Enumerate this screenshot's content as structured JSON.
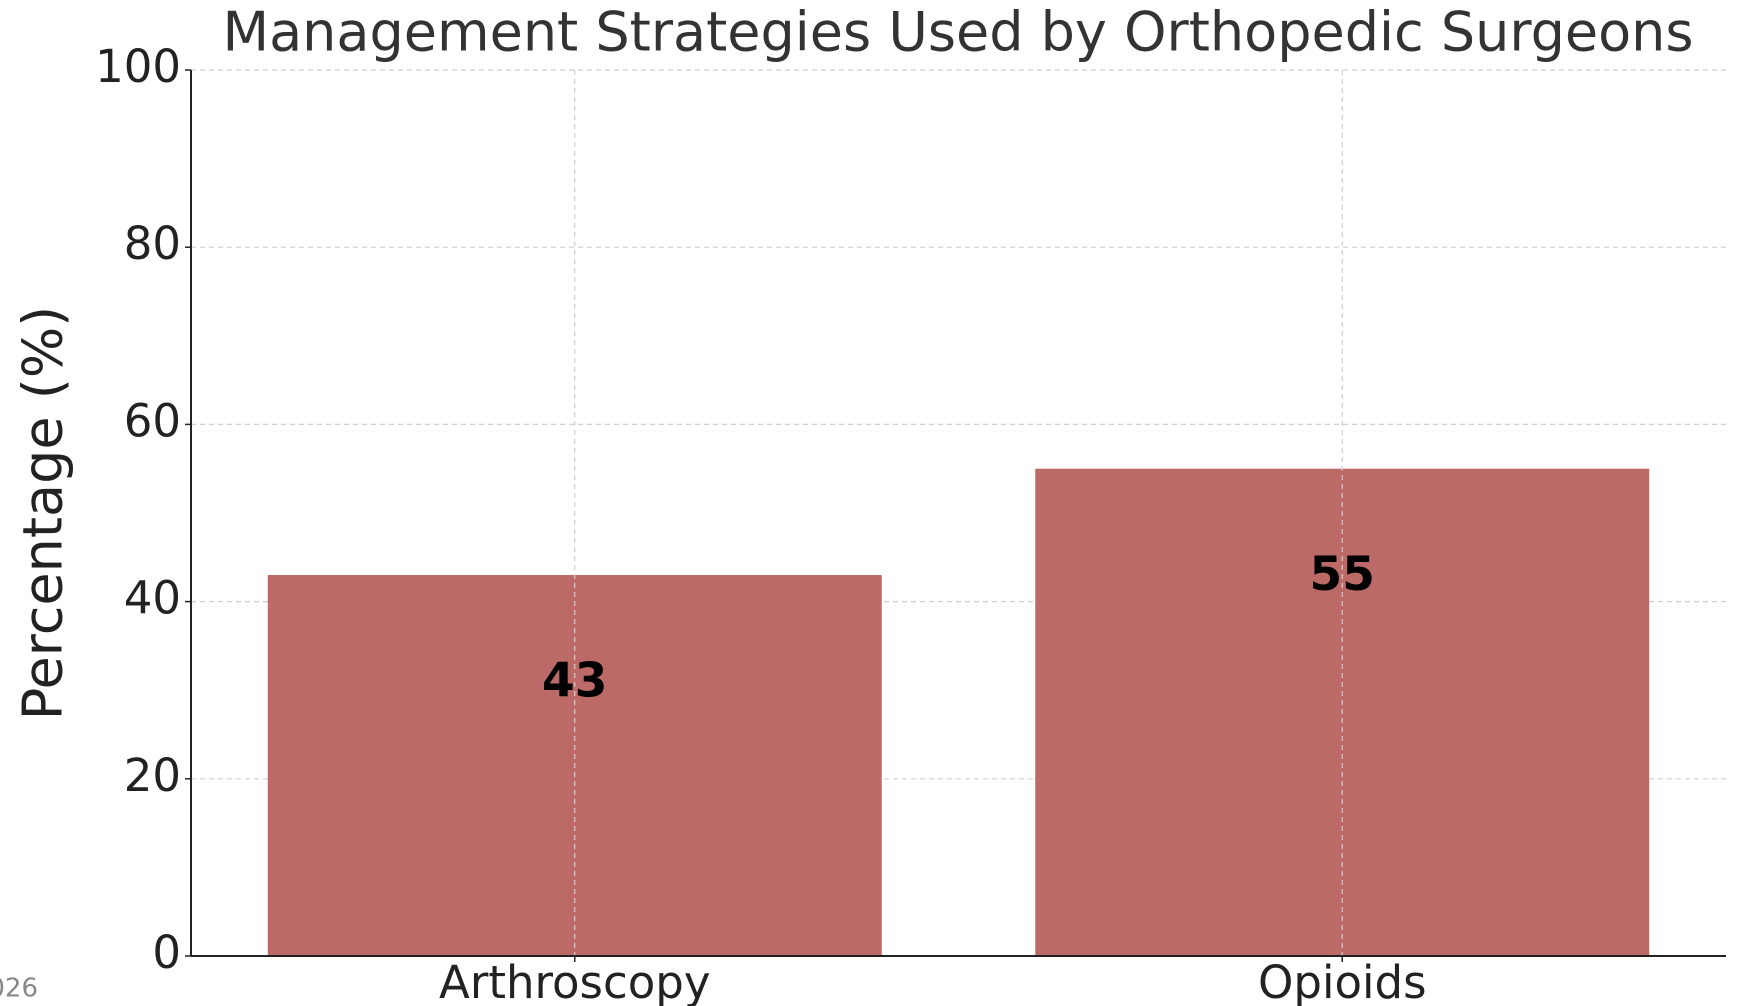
{
  "chart_data": {
    "type": "bar",
    "title": "Management Strategies Used by Orthopedic Surgeons",
    "ylabel": "Percentage (%)",
    "categories": [
      "Arthroscopy",
      "Opioids"
    ],
    "values": [
      43,
      55
    ],
    "color": "#bc6a67",
    "ylim": [
      0,
      100
    ],
    "yticks": [
      0,
      20,
      40,
      60,
      80,
      100
    ],
    "grid": true,
    "annotation": "026"
  }
}
